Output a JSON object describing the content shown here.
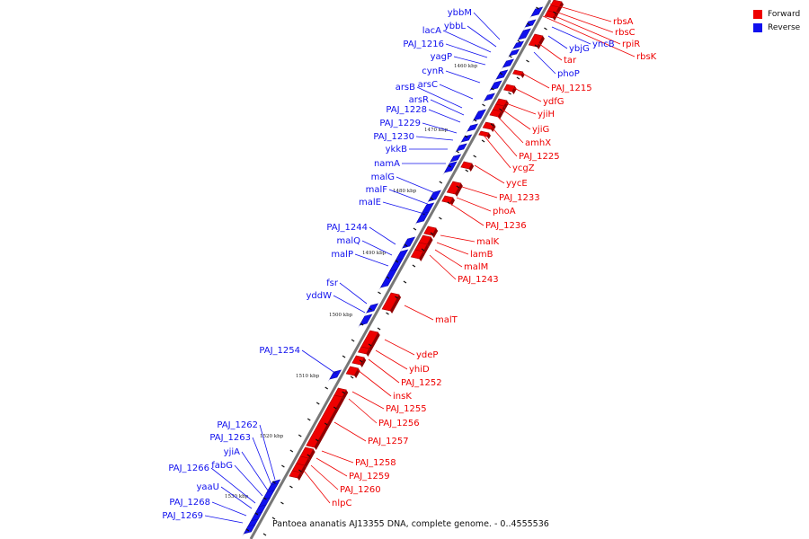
{
  "legend": [
    {
      "label": "Forward",
      "color": "#ee0000"
    },
    {
      "label": "Reverse",
      "color": "#1010ee"
    }
  ],
  "caption": "Pantoea ananatis AJ13355 DNA, complete genome. - 0..4555536",
  "colors": {
    "forward": "#ee0000",
    "reverse": "#1010ee",
    "axis": "#777777"
  },
  "ticks": [
    "1460 kbp",
    "1470 kbp",
    "1480 kbp",
    "1490 kbp",
    "1500 kbp",
    "1510 kbp",
    "1520 kbp",
    "1530 kbp"
  ],
  "reverse_genes": [
    "ybbM",
    "ybbL",
    "lacA",
    "PAJ_1216",
    "yagP",
    "cynR",
    "arsB",
    "arsC",
    "arsR",
    "PAJ_1228",
    "PAJ_1229",
    "PAJ_1230",
    "ykkB",
    "namA",
    "malG",
    "malF",
    "malE",
    "PAJ_1244",
    "malQ",
    "malP",
    "fsr",
    "yddW",
    "PAJ_1254",
    "PAJ_1262",
    "PAJ_1263",
    "yjiA",
    "fabG",
    "PAJ_1266",
    "yaaU",
    "PAJ_1268",
    "PAJ_1269",
    "ybjG",
    "yncB",
    "phoP"
  ],
  "forward_genes": [
    "rbsA",
    "rbsC",
    "rpiR",
    "rbsK",
    "tar",
    "PAJ_1215",
    "ydfG",
    "yjiH",
    "yjiG",
    "amhX",
    "PAJ_1225",
    "ycgZ",
    "yycE",
    "PAJ_1233",
    "phoA",
    "PAJ_1236",
    "malK",
    "lamB",
    "malM",
    "PAJ_1243",
    "malT",
    "ydeP",
    "yhiD",
    "PAJ_1252",
    "insK",
    "PAJ_1255",
    "PAJ_1256",
    "PAJ_1257",
    "PAJ_1258",
    "PAJ_1259",
    "PAJ_1260",
    "nlpC"
  ]
}
